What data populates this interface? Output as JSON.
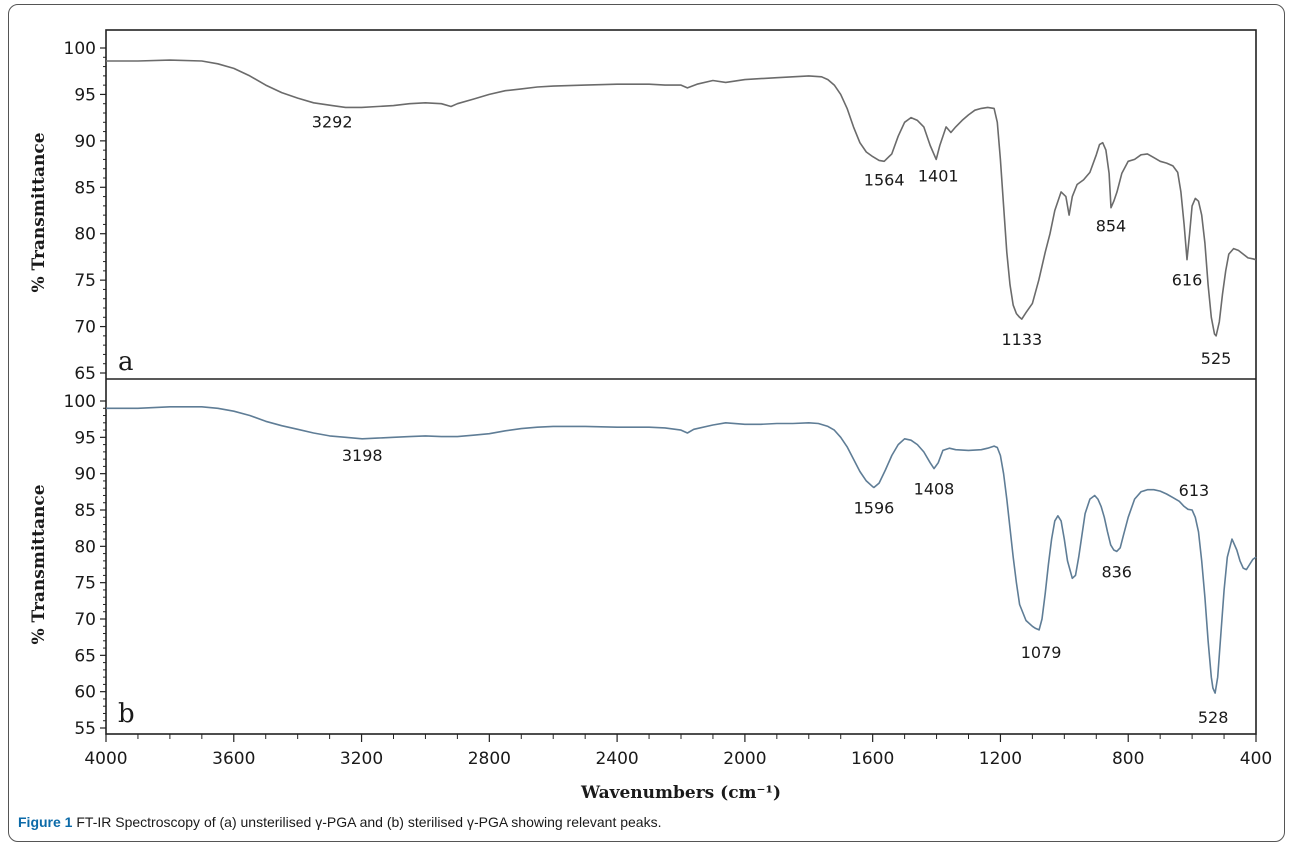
{
  "caption": {
    "lead": "Figure 1",
    "text": " FT-IR Spectroscopy of (a) unsterilised γ-PGA and (b) sterilised γ-PGA showing relevant peaks."
  },
  "chart_data": [
    {
      "type": "line",
      "panel_label": "a",
      "ylabel": "% Transmittance",
      "xlim": [
        4000,
        400
      ],
      "ylim": [
        65,
        100
      ],
      "yticks": [
        65,
        70,
        75,
        80,
        85,
        90,
        95,
        100
      ],
      "line_color": "#6b6b6b",
      "series": [
        {
          "x": [
            4000,
            3900,
            3800,
            3700,
            3650,
            3600,
            3550,
            3500,
            3450,
            3400,
            3350,
            3292,
            3250,
            3200,
            3150,
            3100,
            3050,
            3000,
            2950,
            2920,
            2900,
            2850,
            2800,
            2750,
            2700,
            2650,
            2600,
            2500,
            2400,
            2300,
            2250,
            2200,
            2180,
            2150,
            2100,
            2060,
            2000,
            1950,
            1900,
            1850,
            1800,
            1760,
            1740,
            1720,
            1700,
            1680,
            1660,
            1640,
            1620,
            1600,
            1580,
            1564,
            1540,
            1520,
            1500,
            1480,
            1460,
            1440,
            1420,
            1401,
            1390,
            1370,
            1355,
            1340,
            1320,
            1300,
            1280,
            1260,
            1240,
            1220,
            1210,
            1200,
            1190,
            1180,
            1170,
            1160,
            1150,
            1140,
            1133,
            1120,
            1100,
            1080,
            1060,
            1045,
            1030,
            1010,
            995,
            985,
            975,
            960,
            940,
            920,
            900,
            890,
            880,
            870,
            860,
            854,
            845,
            835,
            820,
            800,
            780,
            760,
            740,
            720,
            700,
            680,
            660,
            645,
            635,
            625,
            616,
            608,
            600,
            590,
            580,
            570,
            560,
            550,
            540,
            530,
            525,
            515,
            505,
            495,
            485,
            470,
            455,
            440,
            425,
            410,
            400
          ],
          "y": [
            98.6,
            98.6,
            98.7,
            98.6,
            98.3,
            97.8,
            97.0,
            96.0,
            95.2,
            94.6,
            94.1,
            93.8,
            93.6,
            93.6,
            93.7,
            93.8,
            94.0,
            94.1,
            94.0,
            93.7,
            94.0,
            94.5,
            95.0,
            95.4,
            95.6,
            95.8,
            95.9,
            96.0,
            96.1,
            96.1,
            96.0,
            96.0,
            95.7,
            96.1,
            96.5,
            96.3,
            96.6,
            96.7,
            96.8,
            96.9,
            97.0,
            96.9,
            96.6,
            96.0,
            95.0,
            93.5,
            91.5,
            89.8,
            88.8,
            88.3,
            87.9,
            87.8,
            88.6,
            90.5,
            92.0,
            92.5,
            92.2,
            91.5,
            89.5,
            88.0,
            89.5,
            91.5,
            90.9,
            91.5,
            92.2,
            92.8,
            93.3,
            93.5,
            93.6,
            93.5,
            92.0,
            88.0,
            83.0,
            78.0,
            74.5,
            72.3,
            71.4,
            71.0,
            70.8,
            71.5,
            72.5,
            75.0,
            78.0,
            80.0,
            82.5,
            84.5,
            84.0,
            82.0,
            84.0,
            85.3,
            85.8,
            86.6,
            88.5,
            89.6,
            89.8,
            89.0,
            86.5,
            82.8,
            83.5,
            84.5,
            86.5,
            87.8,
            88.0,
            88.5,
            88.6,
            88.2,
            87.8,
            87.6,
            87.3,
            86.6,
            84.5,
            81.0,
            77.2,
            80.0,
            83.0,
            83.8,
            83.5,
            82.0,
            79.0,
            74.5,
            71.0,
            69.2,
            69.0,
            70.5,
            73.5,
            76.0,
            77.8,
            78.4,
            78.2,
            77.8,
            77.4,
            77.3,
            77.2
          ]
        }
      ],
      "annotations": [
        {
          "text": "3292",
          "x": 3292,
          "y": 93.8
        },
        {
          "text": "1564",
          "x": 1564,
          "y": 87.8
        },
        {
          "text": "1401",
          "x": 1401,
          "y": 88.0
        },
        {
          "text": "1133",
          "x": 1133,
          "y": 70.8
        },
        {
          "text": "854",
          "x": 854,
          "y": 82.8
        },
        {
          "text": "616",
          "x": 616,
          "y": 77.2
        },
        {
          "text": "525",
          "x": 525,
          "y": 69.0
        }
      ]
    },
    {
      "type": "line",
      "panel_label": "b",
      "ylabel": "% Transmittance",
      "xlabel": "Wavenumbers (cm⁻¹)",
      "xlim": [
        4000,
        400
      ],
      "ylim": [
        55,
        100
      ],
      "xticks": [
        4000,
        3600,
        3200,
        2800,
        2400,
        2000,
        1600,
        1200,
        800,
        400
      ],
      "yticks": [
        55,
        60,
        65,
        70,
        75,
        80,
        85,
        90,
        95,
        100
      ],
      "line_color": "#5f7d96",
      "series": [
        {
          "x": [
            4000,
            3900,
            3800,
            3700,
            3650,
            3600,
            3550,
            3500,
            3450,
            3400,
            3350,
            3300,
            3250,
            3198,
            3150,
            3100,
            3050,
            3000,
            2950,
            2900,
            2850,
            2800,
            2750,
            2700,
            2650,
            2600,
            2500,
            2400,
            2300,
            2250,
            2200,
            2180,
            2160,
            2100,
            2060,
            2000,
            1950,
            1900,
            1850,
            1800,
            1770,
            1740,
            1720,
            1700,
            1680,
            1660,
            1640,
            1620,
            1600,
            1596,
            1580,
            1560,
            1540,
            1520,
            1500,
            1480,
            1460,
            1440,
            1420,
            1408,
            1395,
            1380,
            1360,
            1340,
            1300,
            1260,
            1240,
            1220,
            1210,
            1200,
            1190,
            1180,
            1170,
            1160,
            1150,
            1140,
            1120,
            1100,
            1090,
            1079,
            1070,
            1060,
            1050,
            1040,
            1030,
            1020,
            1010,
            1000,
            990,
            975,
            965,
            955,
            945,
            935,
            920,
            905,
            895,
            885,
            875,
            865,
            855,
            845,
            836,
            825,
            815,
            800,
            780,
            760,
            740,
            720,
            700,
            680,
            660,
            640,
            625,
            613,
            600,
            590,
            580,
            570,
            560,
            550,
            540,
            535,
            528,
            520,
            510,
            500,
            490,
            475,
            460,
            450,
            440,
            430,
            420,
            410,
            400
          ],
          "y": [
            99.0,
            99.0,
            99.2,
            99.2,
            99.0,
            98.6,
            98.0,
            97.2,
            96.6,
            96.1,
            95.6,
            95.2,
            95.0,
            94.8,
            94.9,
            95.0,
            95.1,
            95.2,
            95.1,
            95.1,
            95.3,
            95.5,
            95.9,
            96.2,
            96.4,
            96.5,
            96.5,
            96.4,
            96.4,
            96.3,
            96.0,
            95.6,
            96.1,
            96.7,
            97.0,
            96.8,
            96.8,
            96.9,
            96.9,
            97.0,
            96.9,
            96.5,
            96.0,
            95.0,
            93.7,
            92.0,
            90.3,
            89.0,
            88.2,
            88.1,
            88.7,
            90.5,
            92.5,
            94.0,
            94.8,
            94.6,
            94.0,
            93.0,
            91.5,
            90.7,
            91.5,
            93.2,
            93.5,
            93.3,
            93.2,
            93.3,
            93.5,
            93.8,
            93.6,
            92.5,
            90.0,
            86.5,
            82.5,
            78.5,
            75.0,
            72.0,
            69.8,
            69.0,
            68.7,
            68.5,
            70.0,
            73.5,
            77.5,
            81.0,
            83.5,
            84.2,
            83.5,
            81.0,
            78.0,
            75.6,
            76.0,
            78.5,
            81.5,
            84.5,
            86.5,
            87.0,
            86.5,
            85.5,
            84.0,
            82.0,
            80.2,
            79.5,
            79.3,
            79.8,
            81.5,
            84.0,
            86.5,
            87.5,
            87.8,
            87.8,
            87.6,
            87.2,
            86.7,
            86.2,
            85.5,
            85.1,
            85.0,
            84.0,
            82.0,
            78.0,
            73.0,
            67.0,
            62.0,
            60.5,
            59.8,
            62.0,
            68.0,
            74.0,
            78.5,
            81.0,
            79.5,
            78.0,
            77.0,
            76.8,
            77.5,
            78.2,
            78.5
          ]
        }
      ],
      "annotations": [
        {
          "text": "3198",
          "x": 3198,
          "y": 94.8
        },
        {
          "text": "1596",
          "x": 1596,
          "y": 88.1
        },
        {
          "text": "1408",
          "x": 1408,
          "y": 90.7
        },
        {
          "text": "1079",
          "x": 1079,
          "y": 68.5
        },
        {
          "text": "836",
          "x": 836,
          "y": 79.3
        },
        {
          "text": "613",
          "x": 613,
          "y": 85.0
        },
        {
          "text": "528",
          "x": 528,
          "y": 59.8
        }
      ]
    }
  ]
}
